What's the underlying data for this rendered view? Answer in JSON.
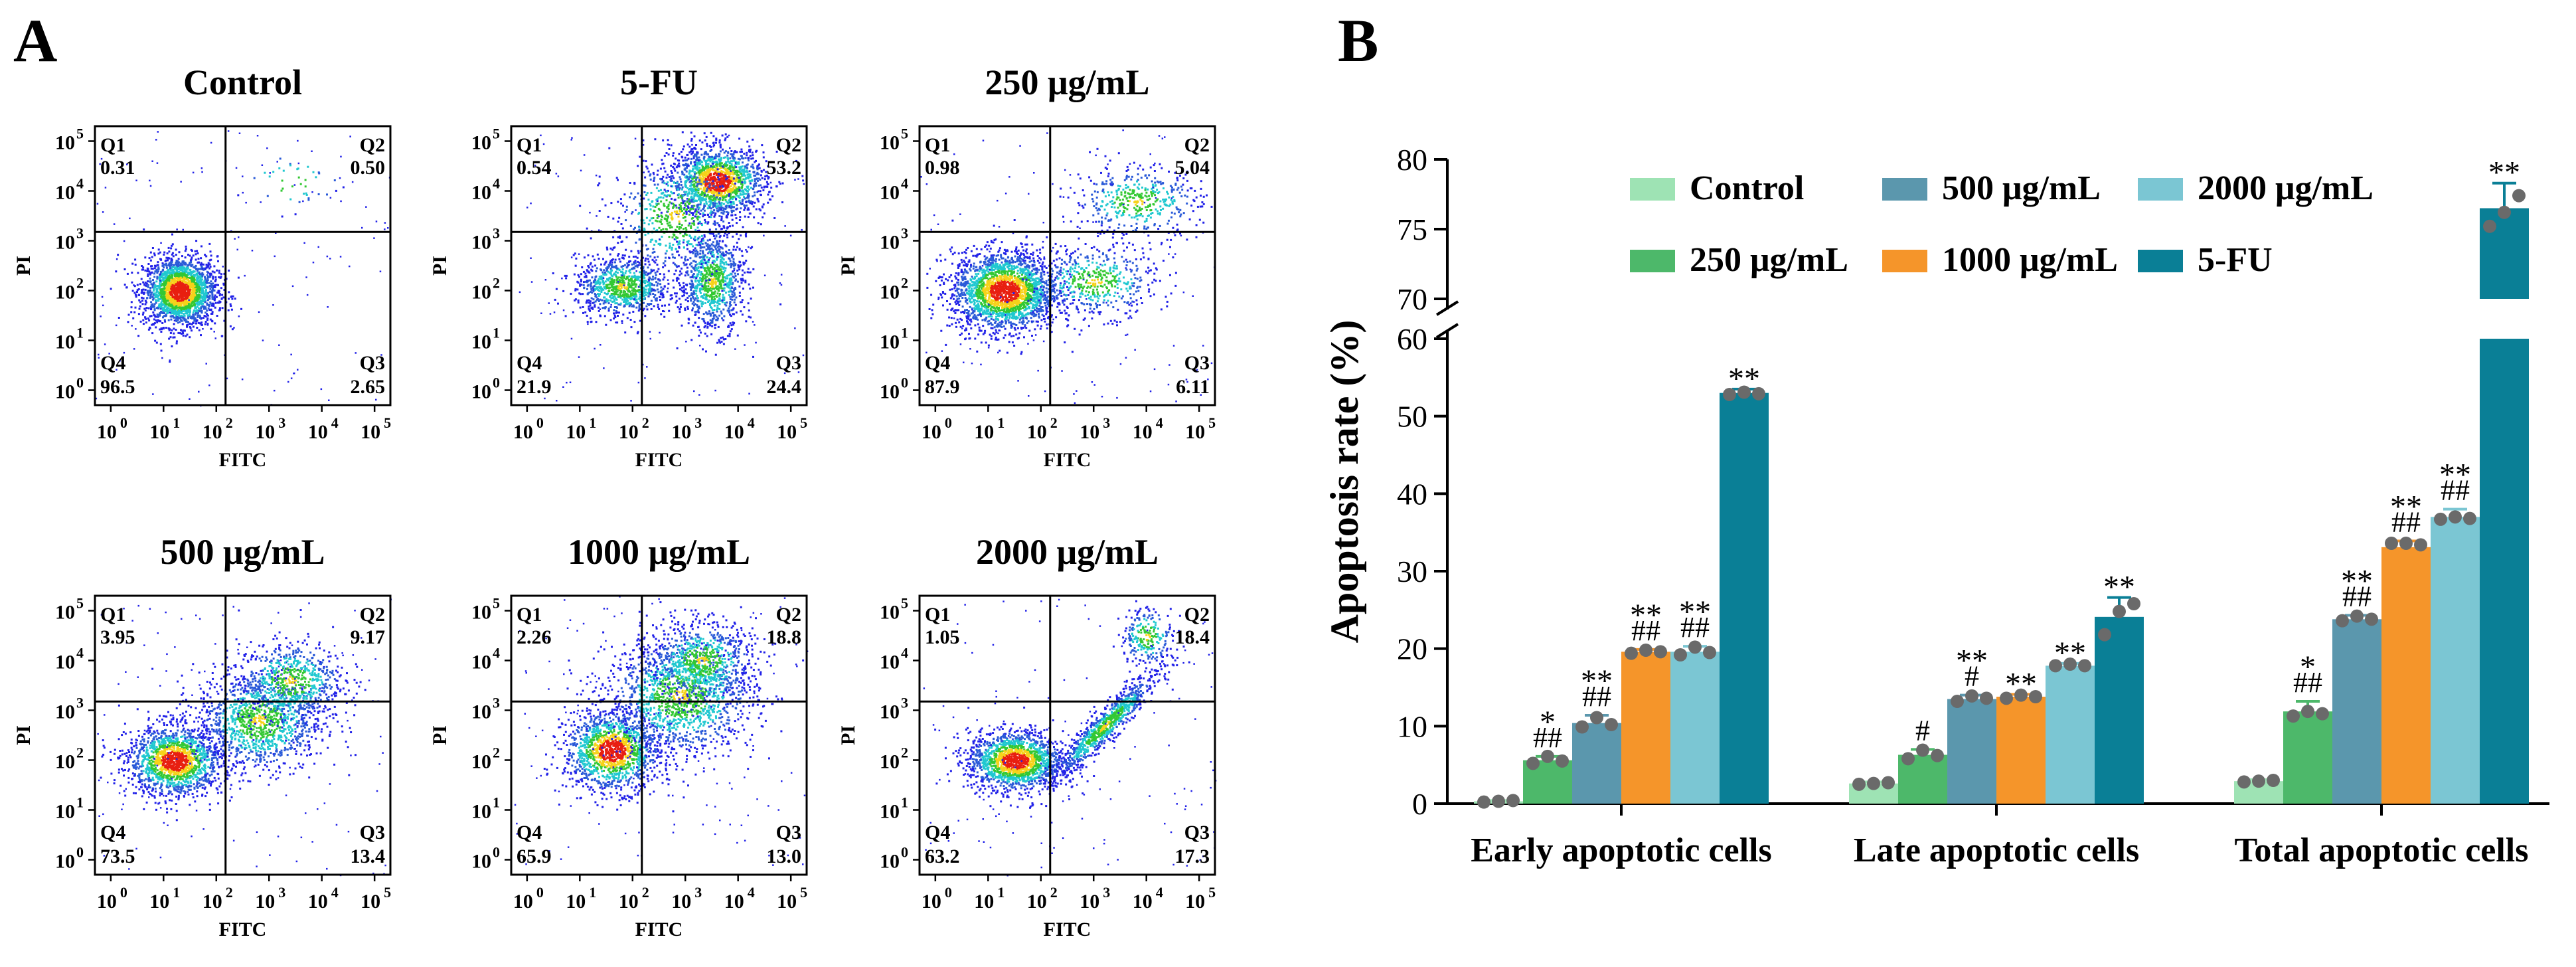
{
  "panel_a": {
    "label": "A",
    "x_axis_label": "FITC",
    "y_axis_label": "PI",
    "tick_labels": [
      "10",
      "10",
      "10",
      "10",
      "10",
      "10"
    ],
    "tick_exponents": [
      "0",
      "1",
      "2",
      "3",
      "4",
      "5"
    ],
    "tick_values": [
      1,
      10,
      100,
      1000,
      10000,
      100000
    ],
    "quadrant_gate": {
      "fitc": 150,
      "pi": 1500
    },
    "plots": [
      {
        "title": "Control",
        "q1": "0.31",
        "q2": "0.50",
        "q3": "2.65",
        "q4": "96.5",
        "q1_label": "Q1",
        "q2_label": "Q2",
        "q3_label": "Q3",
        "q4_label": "Q4"
      },
      {
        "title": "5-FU",
        "q1": "0.54",
        "q2": "53.2",
        "q3": "24.4",
        "q4": "21.9",
        "q1_label": "Q1",
        "q2_label": "Q2",
        "q3_label": "Q3",
        "q4_label": "Q4"
      },
      {
        "title": "250 μg/mL",
        "q1": "0.98",
        "q2": "5.04",
        "q3": "6.11",
        "q4": "87.9",
        "q1_label": "Q1",
        "q2_label": "Q2",
        "q3_label": "Q3",
        "q4_label": "Q4"
      },
      {
        "title": "500 μg/mL",
        "q1": "3.95",
        "q2": "9.17",
        "q3": "13.4",
        "q4": "73.5",
        "q1_label": "Q1",
        "q2_label": "Q2",
        "q3_label": "Q3",
        "q4_label": "Q4"
      },
      {
        "title": "1000 μg/mL",
        "q1": "2.26",
        "q2": "18.8",
        "q3": "13.0",
        "q4": "65.9",
        "q1_label": "Q1",
        "q2_label": "Q2",
        "q3_label": "Q3",
        "q4_label": "Q4"
      },
      {
        "title": "2000 μg/mL",
        "q1": "1.05",
        "q2": "18.4",
        "q3": "17.3",
        "q4": "63.2",
        "q1_label": "Q1",
        "q2_label": "Q2",
        "q3_label": "Q3",
        "q4_label": "Q4"
      }
    ]
  },
  "chart_data": {
    "type": "bar",
    "panel_label": "B",
    "title": "",
    "xlabel": "",
    "ylabel": "Apoptosis rate (%)",
    "categories": [
      "Early apoptotic cells",
      "Late apoptotic cells",
      "Total apoptotic cells"
    ],
    "y_axis_break": {
      "lower_range": [
        0,
        60
      ],
      "upper_range": [
        70,
        80
      ]
    },
    "y_ticks": [
      "0",
      "10",
      "20",
      "30",
      "40",
      "50",
      "60",
      "70",
      "75",
      "80"
    ],
    "legend": [
      [
        "Control",
        "500 μg/mL",
        "2000 μg/mL"
      ],
      [
        "250 μg/mL",
        "1000 μg/mL",
        "5-FU"
      ]
    ],
    "series": [
      {
        "name": "Control",
        "color": "#9ee3b4",
        "values": [
          0.3,
          2.6,
          2.9
        ],
        "errors": [
          0.1,
          0.2,
          0.2
        ],
        "points": [
          [
            0.2,
            0.3,
            0.4
          ],
          [
            2.5,
            2.6,
            2.7
          ],
          [
            2.8,
            2.9,
            3.0
          ]
        ],
        "marks": [
          "",
          "",
          ""
        ],
        "marks2": [
          "",
          "",
          ""
        ]
      },
      {
        "name": "250 μg/mL",
        "color": "#4db86a",
        "values": [
          5.6,
          6.3,
          11.9
        ],
        "errors": [
          0.5,
          0.7,
          1.3
        ],
        "points": [
          [
            5.2,
            6.1,
            5.5
          ],
          [
            5.8,
            6.9,
            6.2
          ],
          [
            11.3,
            11.9,
            11.6
          ]
        ],
        "marks": [
          "*",
          "",
          "*"
        ],
        "marks2": [
          "##",
          "#",
          "##"
        ]
      },
      {
        "name": "500 μg/mL",
        "color": "#5b97ad",
        "values": [
          10.4,
          13.5,
          23.8
        ],
        "errors": [
          1.0,
          0.5,
          0.5
        ],
        "points": [
          [
            9.9,
            11.1,
            10.2
          ],
          [
            13.2,
            13.9,
            13.6
          ],
          [
            23.6,
            24.2,
            23.8
          ]
        ],
        "marks": [
          "**",
          "**",
          "**"
        ],
        "marks2": [
          "##",
          "#",
          "##"
        ]
      },
      {
        "name": "1000 μg/mL",
        "color": "#f5952a",
        "values": [
          19.6,
          13.8,
          33.1
        ],
        "errors": [
          0.3,
          0.3,
          0.8
        ],
        "points": [
          [
            19.4,
            19.8,
            19.6
          ],
          [
            13.6,
            14.0,
            13.8
          ],
          [
            33.6,
            33.6,
            33.4
          ]
        ],
        "marks": [
          "**",
          "**",
          "**"
        ],
        "marks2": [
          "##",
          "",
          "##"
        ]
      },
      {
        "name": "2000 μg/mL",
        "color": "#7bc6d3",
        "values": [
          19.6,
          17.8,
          37.0
        ],
        "errors": [
          0.7,
          0.3,
          1.0
        ],
        "points": [
          [
            19.2,
            20.2,
            19.5
          ],
          [
            17.8,
            18.0,
            17.8
          ],
          [
            36.7,
            37.0,
            36.8
          ]
        ],
        "marks": [
          "**",
          "**",
          "**"
        ],
        "marks2": [
          "##",
          "",
          "##"
        ]
      },
      {
        "name": "5-FU",
        "color": "#0a7f96",
        "values": [
          53.0,
          24.1,
          76.5
        ],
        "errors": [
          0.5,
          2.5,
          1.8
        ],
        "points": [
          [
            52.8,
            53.1,
            52.9
          ],
          [
            21.8,
            24.8,
            25.8
          ],
          [
            75.2,
            76.2,
            77.4
          ]
        ],
        "marks": [
          "**",
          "**",
          "**"
        ],
        "marks2": [
          "",
          "",
          ""
        ]
      }
    ]
  }
}
